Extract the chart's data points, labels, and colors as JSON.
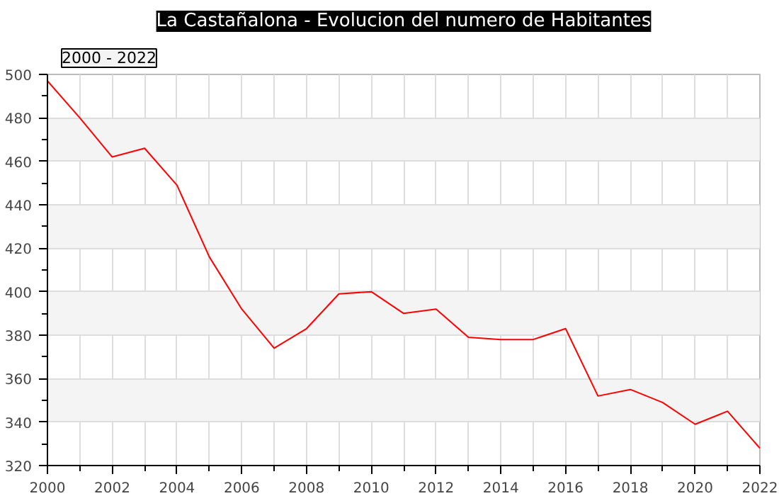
{
  "chart_data": {
    "type": "line",
    "title": "La Castañalona - Evolucion del numero de Habitantes",
    "annotations": [
      "2000 - 2022"
    ],
    "x": [
      2000,
      2001,
      2002,
      2003,
      2004,
      2005,
      2006,
      2007,
      2008,
      2009,
      2010,
      2011,
      2012,
      2013,
      2014,
      2015,
      2016,
      2017,
      2018,
      2019,
      2020,
      2021,
      2022
    ],
    "series": [
      {
        "color": "#ff0000",
        "values": [
          497,
          480,
          462,
          466,
          449,
          416,
          392,
          374,
          383,
          399,
          400,
          390,
          392,
          379,
          378,
          378,
          383,
          352,
          355,
          349,
          339,
          345,
          328
        ]
      }
    ],
    "xlim": [
      2000,
      2022
    ],
    "ylim": [
      320,
      500
    ],
    "xticks": [
      2000,
      2002,
      2004,
      2006,
      2008,
      2010,
      2012,
      2014,
      2016,
      2018,
      2020,
      2022
    ],
    "yticks": [
      320,
      340,
      360,
      380,
      400,
      420,
      440,
      460,
      480,
      500
    ],
    "grid": true,
    "marker": "none",
    "line_style": "solid"
  }
}
